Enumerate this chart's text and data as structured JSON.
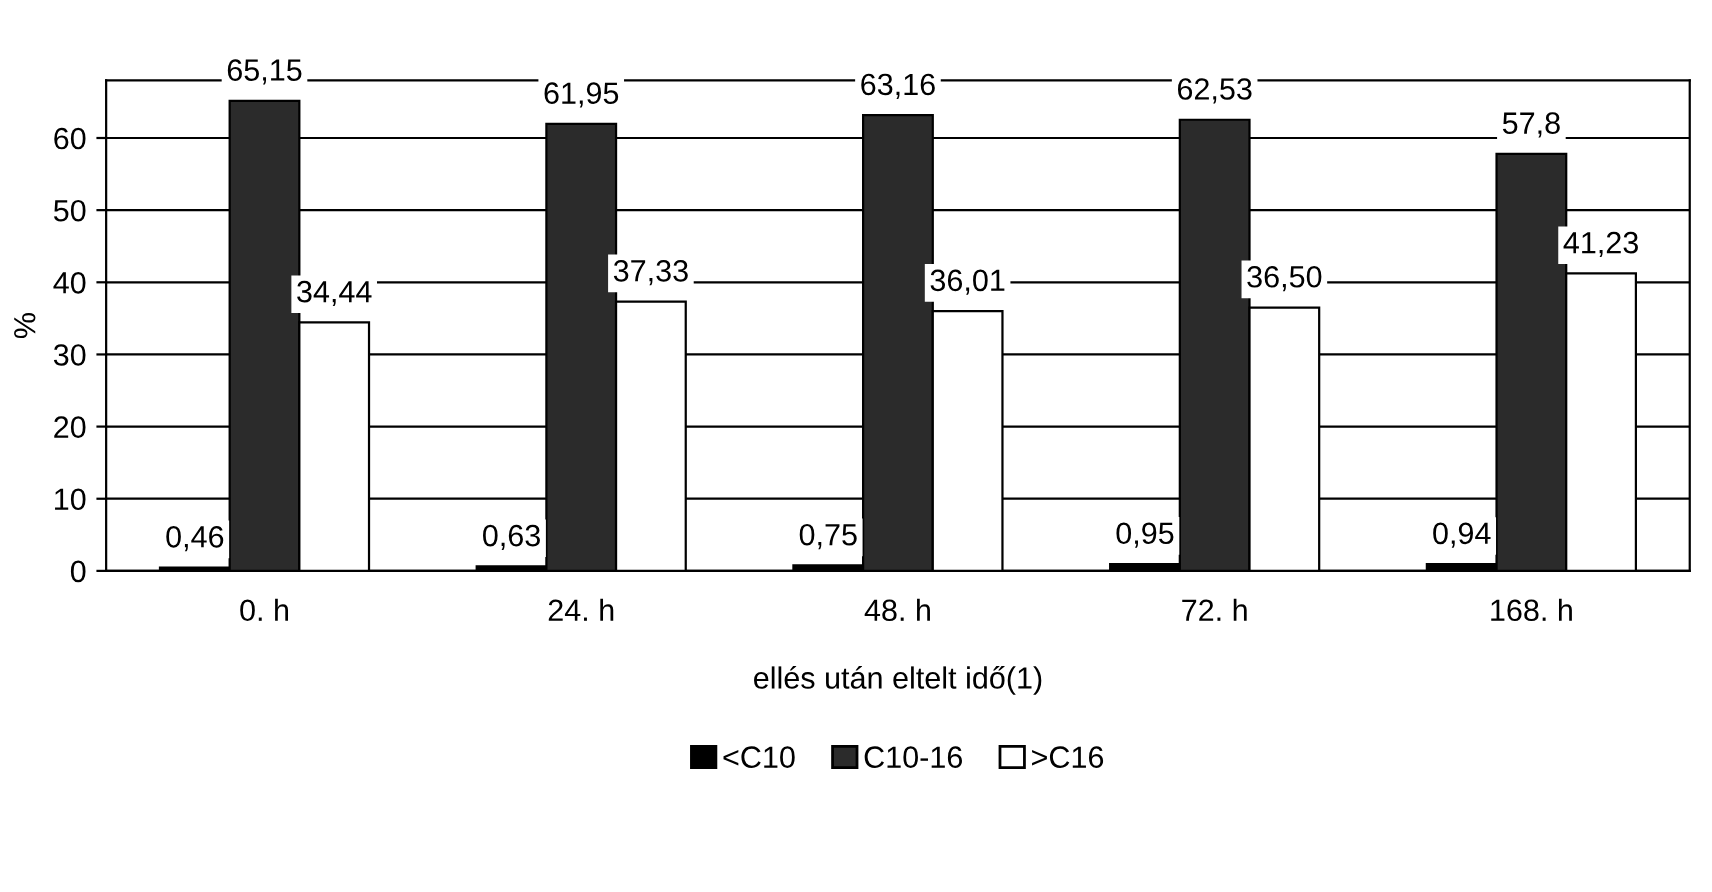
{
  "chart_data": {
    "type": "bar",
    "xlabel": "ellés után eltelt idő(1)",
    "ylabel": "%",
    "categories": [
      "0. h",
      "24. h",
      "48. h",
      "72. h",
      "168. h"
    ],
    "series": [
      {
        "name": "<C10",
        "color": "#000000",
        "values": [
          0.46,
          0.63,
          0.75,
          0.95,
          0.94
        ],
        "value_labels": [
          "0,46",
          "0,63",
          "0,75",
          "0,95",
          "0,94"
        ]
      },
      {
        "name": "C10-16",
        "color": "#2b2b2b",
        "values": [
          65.15,
          61.95,
          63.16,
          62.53,
          57.8
        ],
        "value_labels": [
          "65,15",
          "61,95",
          "63,16",
          "62,53",
          "57,8"
        ]
      },
      {
        "name": ">C16",
        "color": "#ffffff",
        "values": [
          34.44,
          37.33,
          36.01,
          36.5,
          41.23
        ],
        "value_labels": [
          "34,44",
          "37,33",
          "36,01",
          "36,50",
          "41,23"
        ]
      }
    ],
    "ylim": [
      0,
      68
    ],
    "yticks": [
      0,
      10,
      20,
      30,
      40,
      50,
      60
    ],
    "grid": "y",
    "legend": "bottom"
  }
}
